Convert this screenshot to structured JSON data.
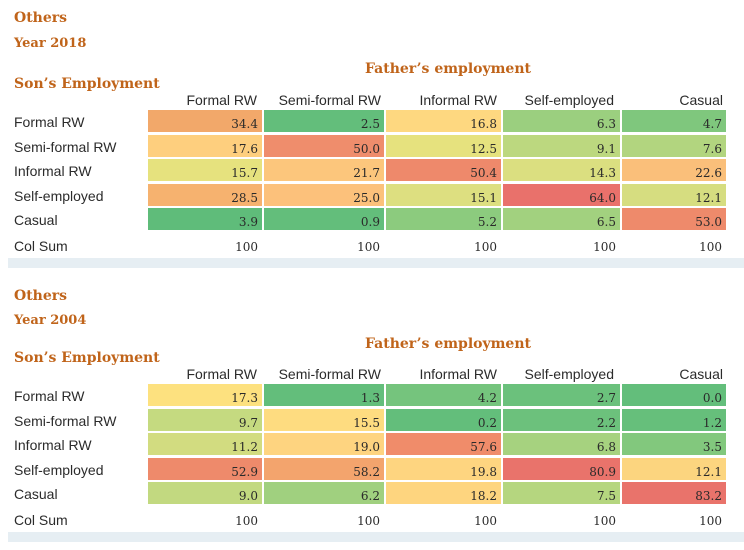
{
  "tables": [
    {
      "title": "Others",
      "year": "Year 2018",
      "row_header": "Son’s Employment",
      "col_header": "Father’s employment",
      "columns": [
        "Formal RW",
        "Semi-formal RW",
        "Informal RW",
        "Self-employed",
        "Casual"
      ],
      "rows": [
        {
          "label": "Formal RW",
          "values": [
            "34.4",
            "2.5",
            "16.8",
            "6.3",
            "4.7"
          ],
          "colors": [
            "#f2a86a",
            "#63be7b",
            "#fed880",
            "#9bcf7f",
            "#7fc77d"
          ]
        },
        {
          "label": "Semi-formal RW",
          "values": [
            "17.6",
            "50.0",
            "12.5",
            "9.1",
            "7.6"
          ],
          "colors": [
            "#fecf7e",
            "#ef8d6c",
            "#e6e27e",
            "#bcd87f",
            "#b2d57f"
          ]
        },
        {
          "label": "Informal RW",
          "values": [
            "15.7",
            "21.7",
            "50.4",
            "14.3",
            "22.6"
          ],
          "colors": [
            "#e6e27e",
            "#fcc67c",
            "#ee896b",
            "#dbdf80",
            "#fabf7a"
          ]
        },
        {
          "label": "Self-employed",
          "values": [
            "28.5",
            "25.0",
            "15.1",
            "64.0",
            "12.1"
          ],
          "colors": [
            "#f6b26f",
            "#fcc17b",
            "#dddf80",
            "#e9716b",
            "#d6dd80"
          ]
        },
        {
          "label": "Casual",
          "values": [
            "3.9",
            "0.9",
            "5.2",
            "6.5",
            "53.0"
          ],
          "colors": [
            "#5fbc7a",
            "#63be7b",
            "#8ccb7e",
            "#a2d17f",
            "#ee8a6b"
          ]
        }
      ],
      "col_sum_label": "Col Sum",
      "col_sums": [
        "100",
        "100",
        "100",
        "100",
        "100"
      ]
    },
    {
      "title": "Others",
      "year": "Year 2004",
      "row_header": "Son’s Employment",
      "col_header": "Father’s employment",
      "columns": [
        "Formal RW",
        "Semi-formal RW",
        "Informal RW",
        "Self-employed",
        "Casual"
      ],
      "rows": [
        {
          "label": "Formal RW",
          "values": [
            "17.3",
            "1.3",
            "4.2",
            "2.7",
            "0.0"
          ],
          "colors": [
            "#fde17f",
            "#63be7b",
            "#75c47d",
            "#6bc17c",
            "#63be7b"
          ]
        },
        {
          "label": "Semi-formal RW",
          "values": [
            "9.7",
            "15.5",
            "0.2",
            "2.2",
            "1.2"
          ],
          "colors": [
            "#c5da80",
            "#fedc80",
            "#63be7b",
            "#6cc17c",
            "#66bf7b"
          ]
        },
        {
          "label": "Informal RW",
          "values": [
            "11.2",
            "19.0",
            "57.6",
            "6.8",
            "3.5"
          ],
          "colors": [
            "#d2dc80",
            "#fed480",
            "#f08c6a",
            "#a6d27f",
            "#82c87d"
          ]
        },
        {
          "label": "Self-employed",
          "values": [
            "52.9",
            "58.2",
            "19.8",
            "80.9",
            "12.1"
          ],
          "colors": [
            "#ee8a6b",
            "#f3a46d",
            "#fed580",
            "#e9736b",
            "#fcd57f"
          ]
        },
        {
          "label": "Casual",
          "values": [
            "9.0",
            "6.2",
            "18.2",
            "7.5",
            "83.2"
          ],
          "colors": [
            "#c2d980",
            "#a0d07f",
            "#fed57f",
            "#b5d67f",
            "#e9736b"
          ]
        }
      ],
      "col_sum_label": "Col Sum",
      "col_sums": [
        "100",
        "100",
        "100",
        "100",
        "100"
      ]
    }
  ]
}
